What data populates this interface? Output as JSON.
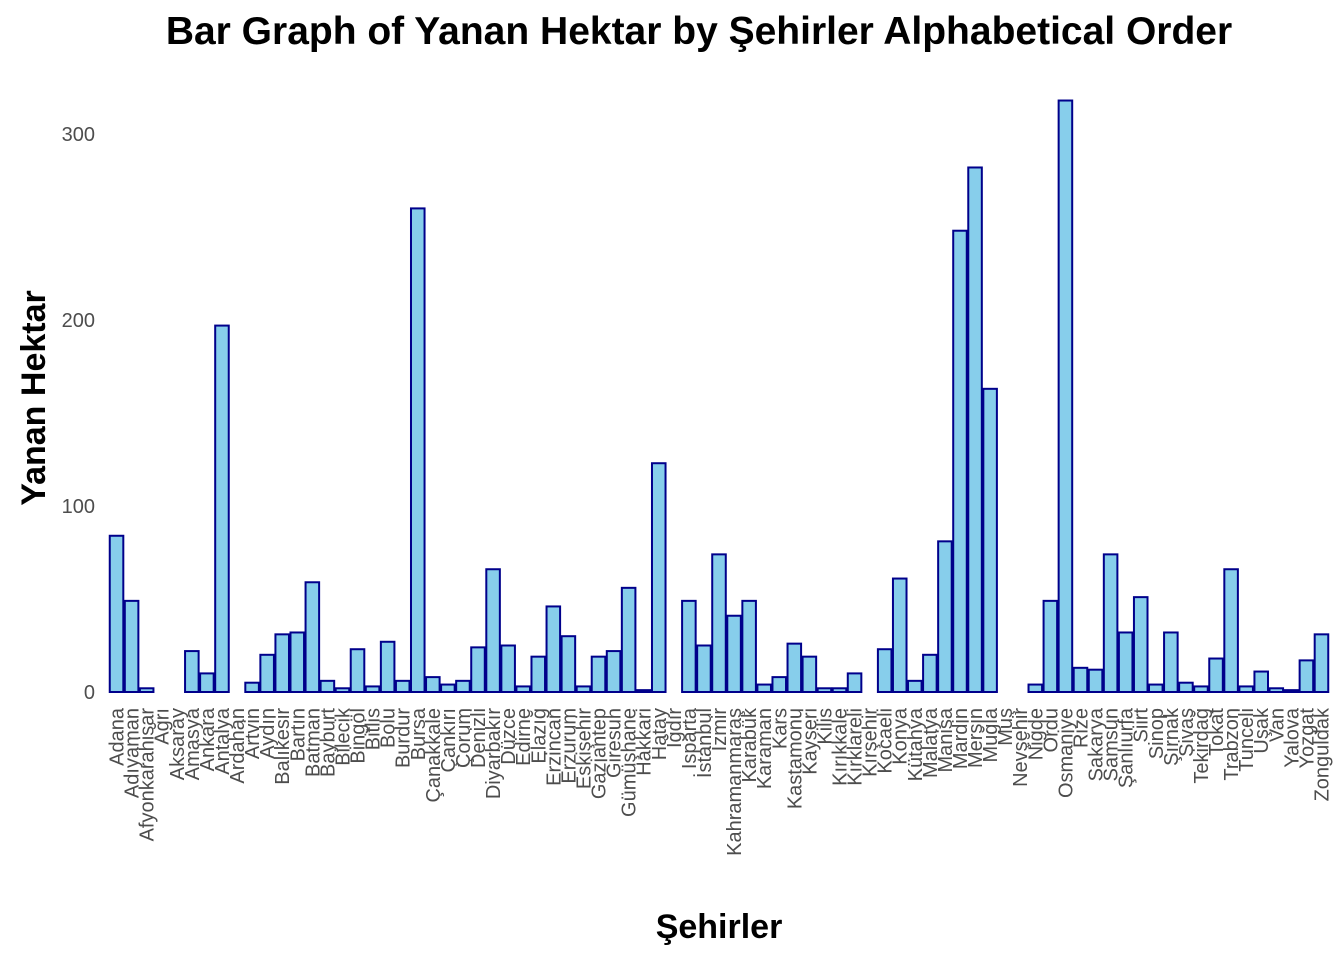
{
  "chart_data": {
    "type": "bar",
    "title": "Bar Graph of Yanan Hektar by Şehirler Alphabetical Order",
    "xlabel": "Şehirler",
    "ylabel": "Yanan Hektar",
    "ylim": [
      0,
      320
    ],
    "yticks": [
      0,
      100,
      200,
      300
    ],
    "grid": false,
    "colors": {
      "bar_fill": "#87CEEB",
      "bar_stroke": "#00008B",
      "tick_text": "#4d4d4d"
    },
    "categories": [
      "Adana",
      "Adıyaman",
      "Afyonkarahisar",
      "Ağrı",
      "Aksaray",
      "Amasya",
      "Ankara",
      "Antalya",
      "Ardahan",
      "Artvin",
      "Aydın",
      "Balıkesir",
      "Bartın",
      "Batman",
      "Bayburt",
      "Bilecik",
      "Bingöl",
      "Bitlis",
      "Bolu",
      "Burdur",
      "Bursa",
      "Çanakkale",
      "Çankırı",
      "Çorum",
      "Denizli",
      "Diyarbakır",
      "Düzce",
      "Edirne",
      "Elazığ",
      "Erzincan",
      "Erzurum",
      "Eskişehir",
      "Gaziantep",
      "Giresun",
      "Gümüşhane",
      "Hakkari",
      "Hatay",
      "Iğdır",
      "Isparta",
      "İstanbul",
      "İzmir",
      "Kahramanmaraş",
      "Karabük",
      "Karaman",
      "Kars",
      "Kastamonu",
      "Kayseri",
      "Kilis",
      "Kırıkkale",
      "Kırklareli",
      "Kırşehir",
      "Kocaeli",
      "Konya",
      "Kütahya",
      "Malatya",
      "Manisa",
      "Mardin",
      "Mersin",
      "Muğla",
      "Muş",
      "Nevşehir",
      "Niğde",
      "Ordu",
      "Osmaniye",
      "Rize",
      "Sakarya",
      "Samsun",
      "Şanlıurfa",
      "Siirt",
      "Sinop",
      "Şırnak",
      "Sivas",
      "Tekirdağ",
      "Tokat",
      "Trabzon",
      "Tunceli",
      "Uşak",
      "Van",
      "Yalova",
      "Yozgat",
      "Zonguldak"
    ],
    "values": [
      84,
      49,
      2,
      0,
      0,
      22,
      10,
      197,
      0,
      5,
      20,
      31,
      32,
      59,
      6,
      2,
      23,
      3,
      27,
      6,
      260,
      8,
      4,
      6,
      24,
      66,
      25,
      3,
      19,
      46,
      30,
      3,
      19,
      22,
      56,
      1,
      123,
      0,
      49,
      25,
      74,
      41,
      49,
      4,
      8,
      26,
      19,
      2,
      2,
      10,
      0,
      23,
      61,
      6,
      20,
      81,
      248,
      282,
      163,
      0,
      0,
      4,
      49,
      318,
      13,
      12,
      74,
      32,
      51,
      4,
      32,
      5,
      3,
      18,
      66,
      3,
      11,
      2,
      1,
      17,
      31
    ]
  }
}
